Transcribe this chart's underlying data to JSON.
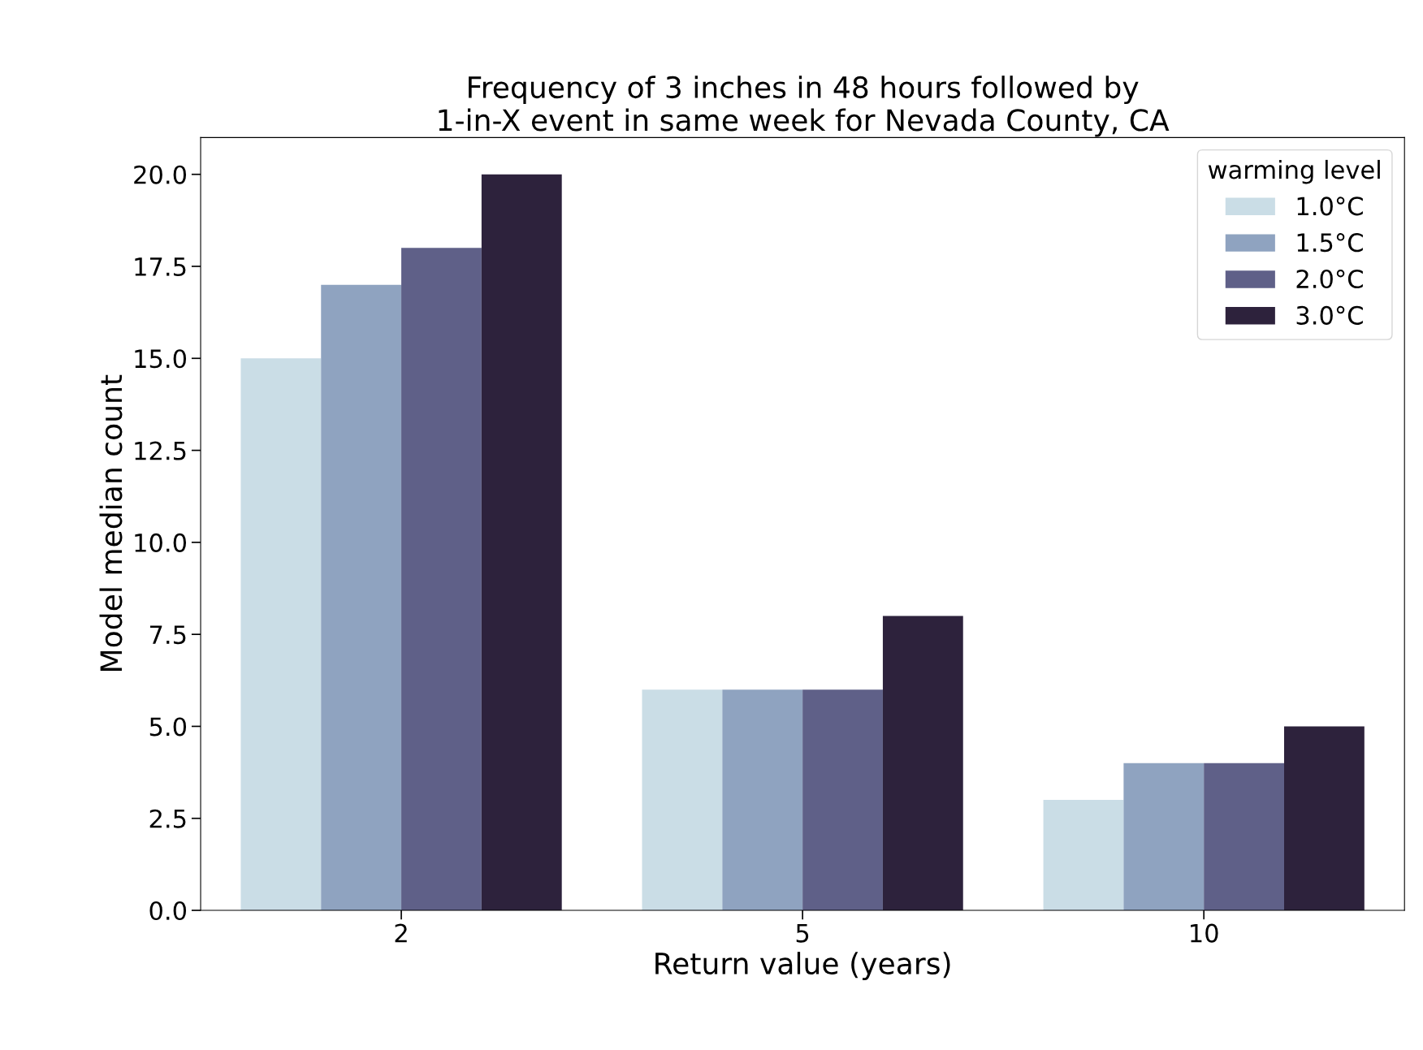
{
  "chart_data": {
    "type": "bar",
    "title": "Frequency of 3 inches in 48 hours followed by\n1-in-X event in same week for Nevada County, CA",
    "xlabel": "Return value (years)",
    "ylabel": "Model median count",
    "legend_title": "warming level",
    "categories": [
      "2",
      "5",
      "10"
    ],
    "series": [
      {
        "name": "1.0°C",
        "color": "#cadde6",
        "values": [
          15,
          6,
          3
        ]
      },
      {
        "name": "1.5°C",
        "color": "#8fa3c0",
        "values": [
          17,
          6,
          4
        ]
      },
      {
        "name": "2.0°C",
        "color": "#5f6088",
        "values": [
          18,
          6,
          4
        ]
      },
      {
        "name": "3.0°C",
        "color": "#2d223c",
        "values": [
          20,
          8,
          5
        ]
      }
    ],
    "ylim": [
      0,
      21
    ],
    "yticks": [
      {
        "value": 0,
        "label": "0.0"
      },
      {
        "value": 2.5,
        "label": "2.5"
      },
      {
        "value": 5,
        "label": "5.0"
      },
      {
        "value": 7.5,
        "label": "7.5"
      },
      {
        "value": 10,
        "label": "10.0"
      },
      {
        "value": 12.5,
        "label": "12.5"
      },
      {
        "value": 15,
        "label": "15.0"
      },
      {
        "value": 17.5,
        "label": "17.5"
      },
      {
        "value": 20,
        "label": "20.0"
      }
    ],
    "grid": false,
    "legend": "top right"
  }
}
